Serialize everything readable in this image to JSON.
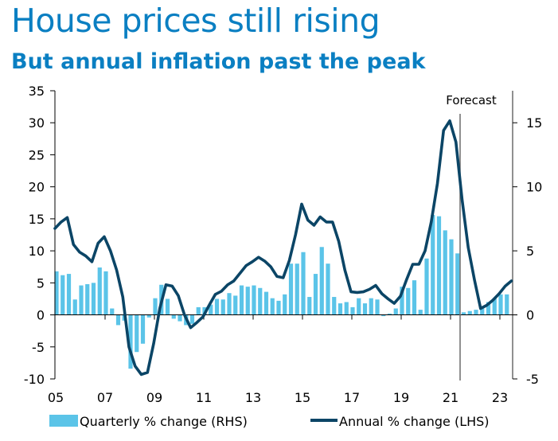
{
  "header": {
    "title": "House prices still rising",
    "subtitle": "But annual inflation past the peak"
  },
  "colors": {
    "title": "#0a7fc2",
    "bars": "#5bc4e8",
    "line": "#0b4566",
    "forecast_line": "#6b6b6b"
  },
  "chart_data": {
    "type": "bar+line",
    "title": "House prices still rising",
    "subtitle": "But annual inflation past the peak",
    "annotation": "Forecast",
    "forecast_start": "2021Q3",
    "x_start": "2005Q1",
    "frequency": "quarterly",
    "xticks": [
      "05",
      "07",
      "09",
      "11",
      "13",
      "15",
      "17",
      "19",
      "21",
      "23"
    ],
    "y_left": {
      "label": "",
      "ylim": [
        -10,
        35
      ],
      "ticks": [
        "35",
        "30",
        "25",
        "20",
        "15",
        "10",
        "5",
        "0",
        "-5",
        "-10"
      ]
    },
    "y_right": {
      "label": "",
      "ylim": [
        -5,
        17.5
      ],
      "ticks": [
        "15",
        "10",
        "5",
        "0",
        "-5"
      ]
    },
    "legend": {
      "placement": "bottom",
      "items": [
        {
          "label": "Quarterly % change (RHS)",
          "kind": "bar"
        },
        {
          "label": "Annual % change (LHS)",
          "kind": "line"
        }
      ]
    },
    "series": [
      {
        "name": "Quarterly % change (RHS)",
        "axis": "right",
        "type": "bar",
        "values": [
          3.4,
          3.1,
          3.2,
          1.2,
          2.3,
          2.4,
          2.5,
          3.7,
          3.4,
          0.5,
          -0.8,
          -0.45,
          -4.2,
          -2.9,
          -2.25,
          -0.2,
          1.3,
          2.35,
          1.25,
          -0.3,
          -0.5,
          -0.8,
          -0.7,
          0.6,
          0.6,
          0.8,
          1.25,
          1.2,
          1.7,
          1.5,
          2.3,
          2.2,
          2.3,
          2.1,
          1.8,
          1.3,
          1.1,
          1.6,
          4.0,
          4.0,
          4.9,
          1.4,
          3.2,
          5.3,
          4.0,
          1.4,
          0.9,
          1.0,
          0.6,
          1.3,
          0.9,
          1.3,
          1.2,
          -0.1,
          0.1,
          0.5,
          2.2,
          2.1,
          2.7,
          0.4,
          4.4,
          7.8,
          7.7,
          6.6,
          5.9,
          4.8,
          0.2,
          0.3,
          0.4,
          0.5,
          1.0,
          1.3,
          1.6,
          1.6
        ]
      },
      {
        "name": "Annual % change (LHS)",
        "axis": "left",
        "type": "line",
        "values": [
          13.5,
          14.5,
          15.2,
          11.0,
          9.8,
          9.2,
          8.3,
          11.2,
          12.2,
          10.0,
          7.0,
          2.8,
          -5.0,
          -8.0,
          -9.3,
          -9.0,
          -4.5,
          1.0,
          4.7,
          4.5,
          3.0,
          0.0,
          -2.0,
          -1.2,
          -0.3,
          1.5,
          3.2,
          3.7,
          4.7,
          5.3,
          6.5,
          7.7,
          8.3,
          9.0,
          8.4,
          7.5,
          6.0,
          5.8,
          8.5,
          12.5,
          17.3,
          14.8,
          14.0,
          15.3,
          14.5,
          14.5,
          11.5,
          7.0,
          3.6,
          3.5,
          3.6,
          4.0,
          4.6,
          3.3,
          2.5,
          1.8,
          2.9,
          5.5,
          7.9,
          7.9,
          10.0,
          14.5,
          20.5,
          28.8,
          30.3,
          27.0,
          18.0,
          10.5,
          5.5,
          1.0,
          1.5,
          2.3,
          3.3,
          4.5,
          5.3
        ]
      }
    ]
  }
}
